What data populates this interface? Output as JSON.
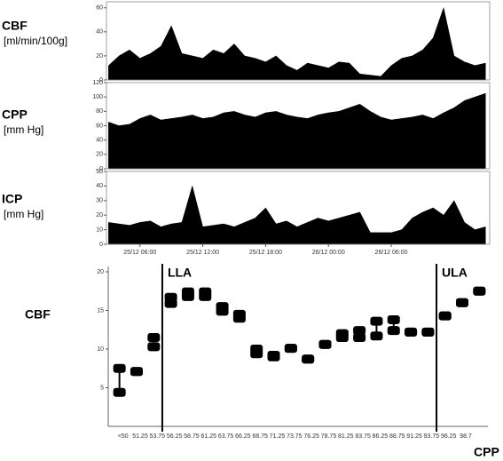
{
  "chart_data": [
    {
      "type": "area",
      "label": "CBF",
      "unit": "[ml/min/100g]",
      "color": "#000000",
      "x": [
        3,
        4,
        5,
        6,
        7,
        8,
        9,
        10,
        11,
        12,
        13,
        14,
        15,
        16,
        17,
        18,
        19,
        20,
        21,
        22,
        23,
        24,
        25,
        26,
        27,
        28,
        29,
        30,
        31,
        32,
        33,
        34,
        35,
        36,
        37,
        38,
        39
      ],
      "values": [
        12,
        20,
        25,
        18,
        22,
        28,
        45,
        22,
        20,
        18,
        25,
        22,
        30,
        20,
        18,
        15,
        20,
        12,
        8,
        14,
        12,
        10,
        15,
        14,
        5,
        4,
        3,
        12,
        18,
        20,
        25,
        35,
        60,
        20,
        15,
        12,
        14
      ],
      "xlim": [
        2.8,
        39.4
      ],
      "ylim": [
        0,
        65
      ],
      "yticks": [
        0,
        20,
        40,
        60
      ]
    },
    {
      "type": "area",
      "label": "CPP",
      "unit": "[mm Hg]",
      "color": "#000000",
      "x": [
        3,
        4,
        5,
        6,
        7,
        8,
        9,
        10,
        11,
        12,
        13,
        14,
        15,
        16,
        17,
        18,
        19,
        20,
        21,
        22,
        23,
        24,
        25,
        26,
        27,
        28,
        29,
        30,
        31,
        32,
        33,
        34,
        35,
        36,
        37,
        38,
        39
      ],
      "values": [
        65,
        60,
        62,
        70,
        75,
        68,
        70,
        72,
        75,
        70,
        72,
        78,
        80,
        75,
        72,
        78,
        80,
        75,
        72,
        70,
        75,
        78,
        80,
        85,
        90,
        80,
        72,
        68,
        70,
        72,
        75,
        70,
        78,
        85,
        95,
        100,
        105
      ],
      "xlim": [
        2.8,
        39.4
      ],
      "ylim": [
        0,
        120
      ],
      "yticks": [
        0,
        20,
        40,
        60,
        80,
        100,
        120
      ]
    },
    {
      "type": "area",
      "label": "ICP",
      "unit": "[mm Hg]",
      "color": "#000000",
      "x": [
        3,
        4,
        5,
        6,
        7,
        8,
        9,
        10,
        11,
        12,
        13,
        14,
        15,
        16,
        17,
        18,
        19,
        20,
        21,
        22,
        23,
        24,
        25,
        26,
        27,
        28,
        29,
        30,
        31,
        32,
        33,
        34,
        35,
        36,
        37,
        38,
        39
      ],
      "values": [
        15,
        14,
        13,
        15,
        16,
        12,
        14,
        15,
        40,
        12,
        13,
        14,
        12,
        15,
        18,
        25,
        14,
        16,
        12,
        15,
        18,
        16,
        18,
        20,
        22,
        8,
        8,
        8,
        10,
        18,
        22,
        25,
        20,
        30,
        15,
        10,
        12
      ],
      "xlim": [
        2.8,
        39.4
      ],
      "ylim": [
        0,
        50
      ],
      "yticks": [
        0,
        10,
        20,
        30,
        40,
        50
      ],
      "xticks": [
        {
          "value": 6,
          "label": "25/12 06:00"
        },
        {
          "value": 12,
          "label": "25/12 12:00"
        },
        {
          "value": 18,
          "label": "25/12 18:00"
        },
        {
          "value": 24,
          "label": "26/12 00:00"
        },
        {
          "value": 30,
          "label": "26/12 06:00"
        }
      ]
    },
    {
      "type": "errorbar",
      "ylabel": "CBF",
      "xlabel": "CPP",
      "color": "#000000",
      "categories": [
        "<50",
        "51.25",
        "53.75",
        "56.25",
        "58.75",
        "61.25",
        "63.75",
        "66.25",
        "68.75",
        "71.25",
        "73.75",
        "76.25",
        "78.75",
        "81.25",
        "83.75",
        "86.25",
        "88.75",
        "91.25",
        "93.75",
        "96.25",
        "98.7",
        null
      ],
      "low": [
        4.4,
        7.1,
        10.3,
        15.9,
        16.8,
        16.8,
        14.9,
        14.0,
        9.4,
        9.0,
        10.1,
        8.7,
        10.6,
        11.5,
        11.5,
        11.7,
        12.4,
        12.2,
        12.2,
        14.3,
        16.0,
        17.5
      ],
      "high": [
        7.5,
        7.1,
        11.5,
        16.7,
        17.4,
        17.4,
        15.5,
        14.5,
        10.0,
        9.2,
        10.1,
        8.7,
        10.6,
        12.0,
        12.4,
        13.6,
        13.8,
        12.2,
        12.2,
        14.3,
        16.0,
        17.5
      ],
      "ylim": [
        0,
        20
      ],
      "yticks": [
        5,
        10,
        15,
        20
      ],
      "limits": [
        {
          "label": "LLA",
          "boundary": 3
        },
        {
          "label": "ULA",
          "boundary": 19
        }
      ]
    }
  ]
}
